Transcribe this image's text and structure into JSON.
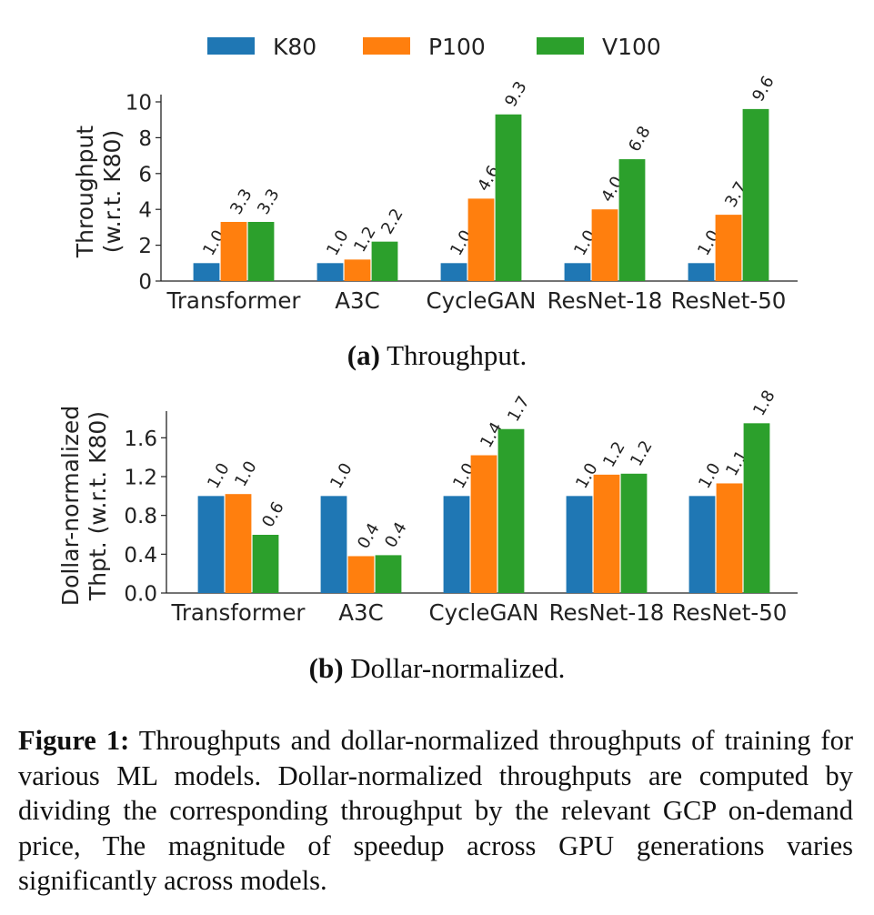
{
  "legend": {
    "items": [
      {
        "label": "K80",
        "color": "#1f77b4"
      },
      {
        "label": "P100",
        "color": "#ff7f0e"
      },
      {
        "label": "V100",
        "color": "#2ca02c"
      }
    ]
  },
  "chart_data": [
    {
      "type": "bar",
      "ylabel": "Throughput\n(w.r.t. K80)",
      "ylim": [
        0,
        10
      ],
      "yticks": [
        "0",
        "2",
        "4",
        "6",
        "8",
        "10"
      ],
      "categories": [
        "Transformer",
        "A3C",
        "CycleGAN",
        "ResNet-18",
        "ResNet-50"
      ],
      "series": [
        {
          "name": "K80",
          "values": [
            1.0,
            1.0,
            1.0,
            1.0,
            1.0
          ],
          "labels": [
            "1.0",
            "1.0",
            "1.0",
            "1.0",
            "1.0"
          ]
        },
        {
          "name": "P100",
          "values": [
            3.3,
            1.2,
            4.6,
            4.0,
            3.7
          ],
          "labels": [
            "3.3",
            "1.2",
            "4.6",
            "4.0",
            "3.7"
          ]
        },
        {
          "name": "V100",
          "values": [
            3.3,
            2.2,
            9.3,
            6.8,
            9.6
          ],
          "labels": [
            "3.3",
            "2.2",
            "9.3",
            "6.8",
            "9.6"
          ]
        }
      ],
      "grid": false,
      "legend_placement": "top"
    },
    {
      "type": "bar",
      "ylabel": "Dollar-normalized\nThpt. (w.r.t. K80)",
      "ylim": [
        0,
        1.8
      ],
      "yticks": [
        "0.0",
        "0.4",
        "0.8",
        "1.2",
        "1.6"
      ],
      "categories": [
        "Transformer",
        "A3C",
        "CycleGAN",
        "ResNet-18",
        "ResNet-50"
      ],
      "series": [
        {
          "name": "K80",
          "values": [
            1.0,
            1.0,
            1.0,
            1.0,
            1.0
          ],
          "labels": [
            "1.0",
            "1.0",
            "1.0",
            "1.0",
            "1.0"
          ]
        },
        {
          "name": "P100",
          "values": [
            1.02,
            0.38,
            1.42,
            1.22,
            1.13
          ],
          "labels": [
            "1.0",
            "0.4",
            "1.4",
            "1.2",
            "1.1"
          ]
        },
        {
          "name": "V100",
          "values": [
            0.6,
            0.39,
            1.69,
            1.23,
            1.75
          ],
          "labels": [
            "0.6",
            "0.4",
            "1.7",
            "1.2",
            "1.8"
          ]
        }
      ],
      "grid": false
    }
  ],
  "subcaptions": {
    "a": {
      "tag": "(a)",
      "text": " Throughput."
    },
    "b": {
      "tag": "(b)",
      "text": " Dollar-normalized."
    }
  },
  "figure_caption": {
    "tag": "Figure 1:",
    "text": " Throughputs and dollar-normalized throughputs of training for various ML models. Dollar-normalized throughputs are computed by dividing the corresponding throughput by the relevant GCP on-demand price, The magnitude of speedup across GPU generations varies significantly across models."
  }
}
